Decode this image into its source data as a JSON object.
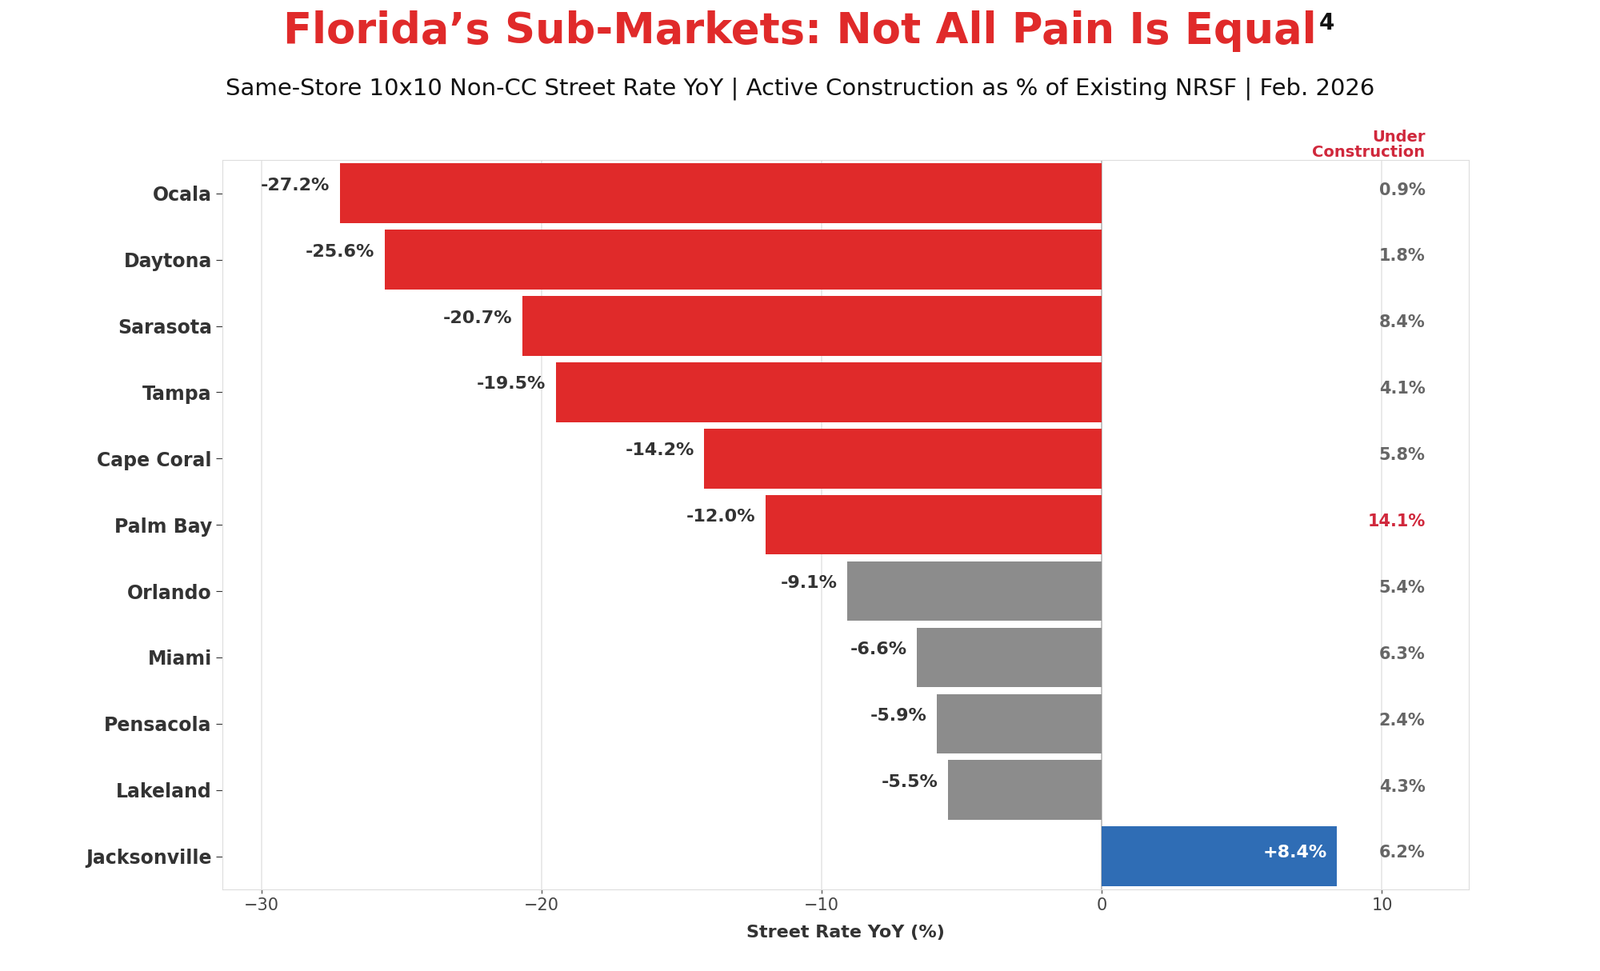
{
  "chart_data": {
    "type": "bar",
    "orientation": "horizontal",
    "title": "Florida’s Sub-Markets: Not All Pain Is Equal",
    "title_note": "4",
    "subtitle": "Same-Store 10x10 Non-CC Street Rate YoY | Active Construction as % of Existing NRSF | Feb. 2026",
    "x_label": "Street Rate YoY (%)",
    "categories": [
      "Ocala",
      "Daytona",
      "Sarasota",
      "Tampa",
      "Cape Coral",
      "Palm Bay",
      "Orlando",
      "Miami",
      "Pensacola",
      "Lakeland",
      "Jacksonville"
    ],
    "values": [
      -27.2,
      -25.6,
      -20.7,
      -19.5,
      -14.2,
      -12.0,
      -9.1,
      -6.6,
      -5.9,
      -5.5,
      8.4
    ],
    "value_labels": [
      "-27.2%",
      "-25.6%",
      "-20.7%",
      "-19.5%",
      "-14.2%",
      "-12.0%",
      "-9.1%",
      "-6.6%",
      "-5.9%",
      "-5.5%",
      "+8.4%"
    ],
    "colors": [
      "#e02a2a",
      "#e02a2a",
      "#e02a2a",
      "#e02a2a",
      "#e02a2a",
      "#e02a2a",
      "#8c8c8c",
      "#8c8c8c",
      "#8c8c8c",
      "#8c8c8c",
      "#2f6db5"
    ],
    "data_labels": true,
    "xlim": [
      -31.4,
      13.1
    ],
    "xticks": [
      {
        "value": -30,
        "label": "−30"
      },
      {
        "value": -20,
        "label": "−20"
      },
      {
        "value": -10,
        "label": "−10"
      },
      0,
      10
    ],
    "grid": true,
    "under_construction": {
      "title": "Under Construction",
      "values": [
        0.9,
        1.8,
        8.4,
        4.1,
        5.8,
        14.1,
        5.4,
        6.3,
        2.4,
        4.3,
        6.2
      ],
      "value_labels": [
        "0.9%",
        "1.8%",
        "8.4%",
        "4.1%",
        "5.8%",
        "14.1%",
        "5.4%",
        "6.3%",
        "2.4%",
        "4.3%",
        "6.2%"
      ],
      "colors": [
        "#666666",
        "#666666",
        "#666666",
        "#666666",
        "#666666",
        "#d0283c",
        "#666666",
        "#666666",
        "#666666",
        "#666666",
        "#666666"
      ]
    }
  }
}
